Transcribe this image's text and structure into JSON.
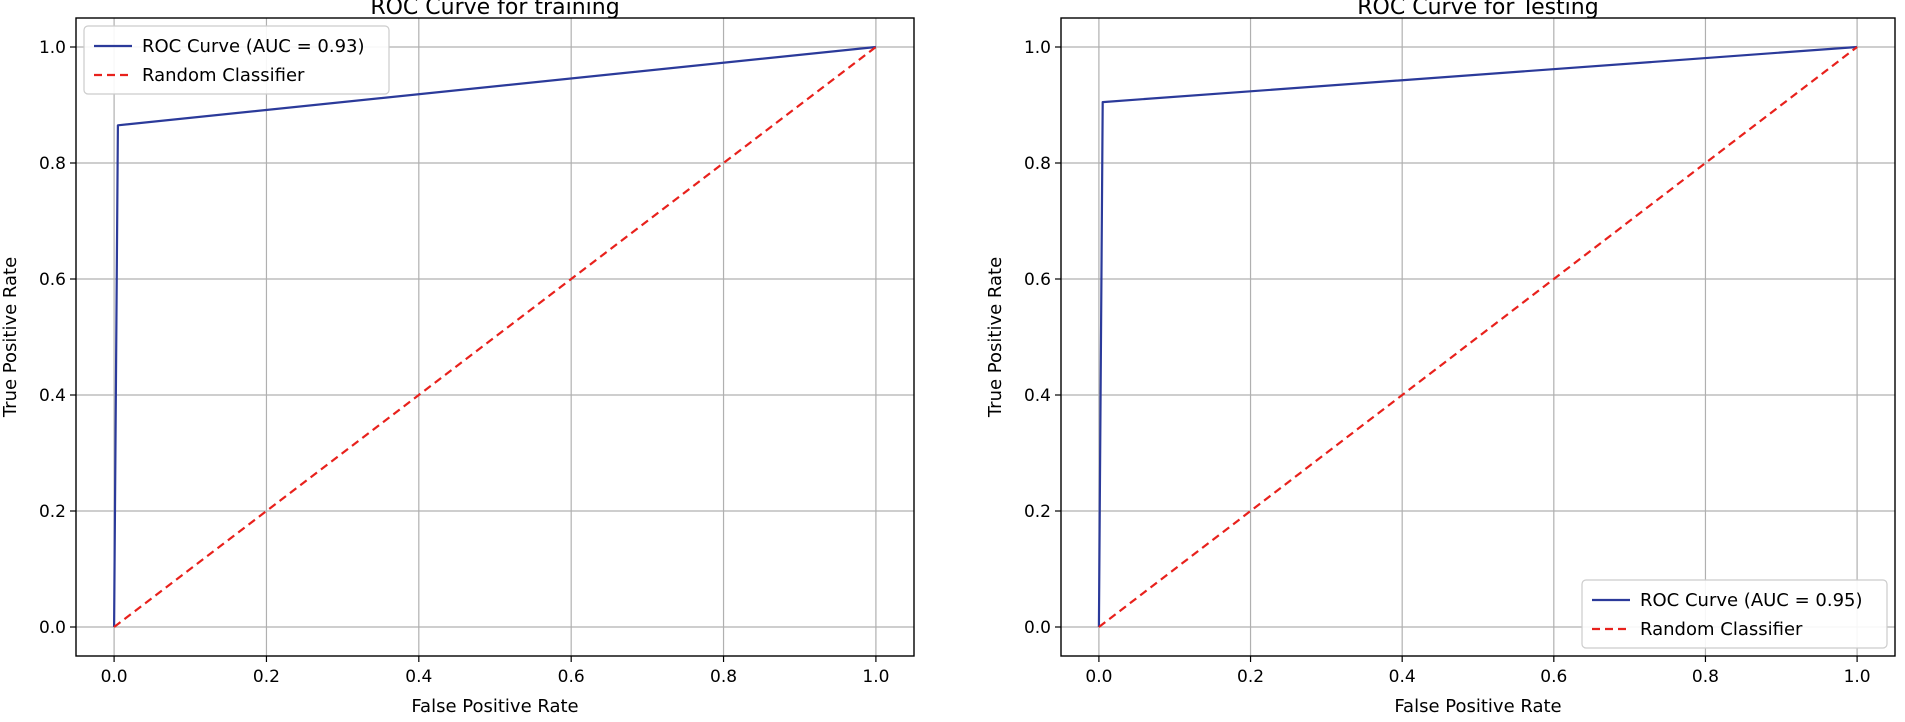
{
  "chart_data": [
    {
      "type": "line",
      "title": "ROC Curve for training",
      "xlabel": "False Positive Rate",
      "ylabel": "True Positive Rate",
      "xlim": [
        -0.05,
        1.05
      ],
      "ylim": [
        -0.05,
        1.05
      ],
      "xticks": [
        "0.0",
        "0.2",
        "0.4",
        "0.6",
        "0.8",
        "1.0"
      ],
      "yticks": [
        "0.0",
        "0.2",
        "0.4",
        "0.6",
        "0.8",
        "1.0"
      ],
      "grid": true,
      "legend_position": "top-left",
      "series": [
        {
          "name": "ROC Curve (AUC = 0.93)",
          "color": "#2b3a9a",
          "style": "solid",
          "x": [
            0.0,
            0.005,
            1.0
          ],
          "y": [
            0.0,
            0.865,
            1.0
          ]
        },
        {
          "name": "Random Classifier",
          "color": "#e8211c",
          "style": "dashed",
          "x": [
            0.0,
            1.0
          ],
          "y": [
            0.0,
            1.0
          ]
        }
      ]
    },
    {
      "type": "line",
      "title": "ROC Curve for Testing",
      "xlabel": "False Positive Rate",
      "ylabel": "True Positive Rate",
      "xlim": [
        -0.05,
        1.05
      ],
      "ylim": [
        -0.05,
        1.05
      ],
      "xticks": [
        "0.0",
        "0.2",
        "0.4",
        "0.6",
        "0.8",
        "1.0"
      ],
      "yticks": [
        "0.0",
        "0.2",
        "0.4",
        "0.6",
        "0.8",
        "1.0"
      ],
      "grid": true,
      "legend_position": "bottom-right",
      "series": [
        {
          "name": "ROC Curve (AUC = 0.95)",
          "color": "#2b3a9a",
          "style": "solid",
          "x": [
            0.0,
            0.005,
            1.0
          ],
          "y": [
            0.0,
            0.905,
            1.0
          ]
        },
        {
          "name": "Random Classifier",
          "color": "#e8211c",
          "style": "dashed",
          "x": [
            0.0,
            1.0
          ],
          "y": [
            0.0,
            1.0
          ]
        }
      ]
    }
  ]
}
